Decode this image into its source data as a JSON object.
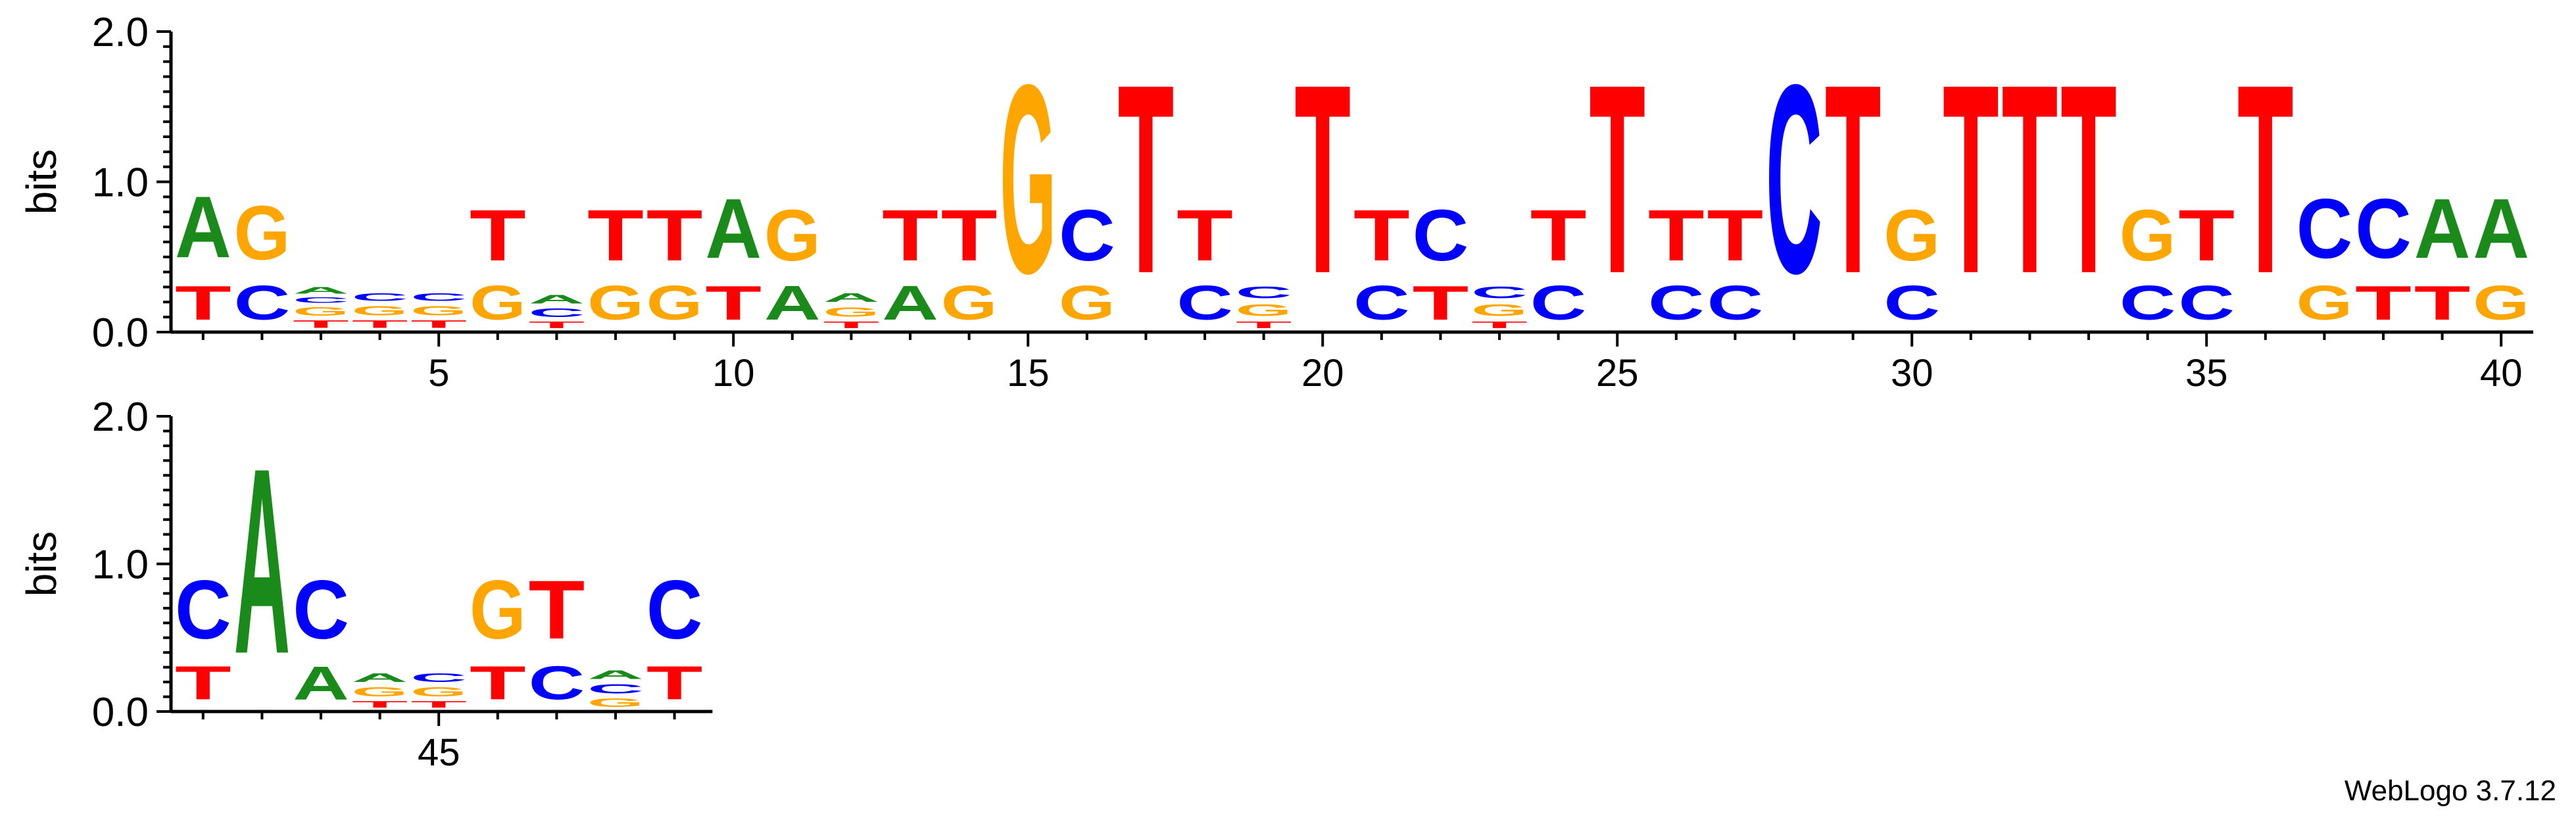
{
  "software_credit": "WebLogo 3.7.12",
  "colors": {
    "A": "#1a8a1a",
    "C": "#0000ff",
    "G": "#ffa500",
    "T": "#ff0000"
  },
  "chart_data": {
    "type": "sequence-logo",
    "ylabel": "bits",
    "ylim": [
      0,
      2
    ],
    "y_ticks": [
      "0.0",
      "1.0",
      "2.0"
    ],
    "x_tick_labels": [
      "5",
      "10",
      "15",
      "20",
      "25",
      "30",
      "35",
      "40",
      "45"
    ],
    "positions_per_row": 40,
    "positions": [
      {
        "pos": 1,
        "stack": [
          [
            "T",
            0.36
          ],
          [
            "A",
            0.65
          ]
        ]
      },
      {
        "pos": 2,
        "stack": [
          [
            "C",
            0.36
          ],
          [
            "G",
            0.57
          ]
        ]
      },
      {
        "pos": 3,
        "stack": [
          [
            "T",
            0.08
          ],
          [
            "G",
            0.09
          ],
          [
            "C",
            0.06
          ],
          [
            "A",
            0.07
          ]
        ]
      },
      {
        "pos": 4,
        "stack": [
          [
            "T",
            0.08
          ],
          [
            "G",
            0.1
          ],
          [
            "C",
            0.08
          ]
        ]
      },
      {
        "pos": 5,
        "stack": [
          [
            "T",
            0.08
          ],
          [
            "G",
            0.1
          ],
          [
            "C",
            0.08
          ]
        ]
      },
      {
        "pos": 6,
        "stack": [
          [
            "G",
            0.36
          ],
          [
            "T",
            0.54
          ]
        ]
      },
      {
        "pos": 7,
        "stack": [
          [
            "T",
            0.07
          ],
          [
            "C",
            0.09
          ],
          [
            "A",
            0.09
          ]
        ]
      },
      {
        "pos": 8,
        "stack": [
          [
            "G",
            0.36
          ],
          [
            "T",
            0.54
          ]
        ]
      },
      {
        "pos": 9,
        "stack": [
          [
            "G",
            0.36
          ],
          [
            "T",
            0.54
          ]
        ]
      },
      {
        "pos": 10,
        "stack": [
          [
            "T",
            0.36
          ],
          [
            "A",
            0.63
          ]
        ]
      },
      {
        "pos": 11,
        "stack": [
          [
            "A",
            0.36
          ],
          [
            "G",
            0.54
          ]
        ]
      },
      {
        "pos": 12,
        "stack": [
          [
            "T",
            0.07
          ],
          [
            "G",
            0.1
          ],
          [
            "A",
            0.09
          ]
        ]
      },
      {
        "pos": 13,
        "stack": [
          [
            "A",
            0.36
          ],
          [
            "T",
            0.54
          ]
        ]
      },
      {
        "pos": 14,
        "stack": [
          [
            "G",
            0.36
          ],
          [
            "T",
            0.54
          ]
        ]
      },
      {
        "pos": 15,
        "stack": [
          [
            "G",
            2.0
          ]
        ]
      },
      {
        "pos": 16,
        "stack": [
          [
            "G",
            0.36
          ],
          [
            "C",
            0.54
          ]
        ]
      },
      {
        "pos": 17,
        "stack": [
          [
            "T",
            2.0
          ]
        ]
      },
      {
        "pos": 18,
        "stack": [
          [
            "C",
            0.36
          ],
          [
            "T",
            0.54
          ]
        ]
      },
      {
        "pos": 19,
        "stack": [
          [
            "T",
            0.07
          ],
          [
            "G",
            0.12
          ],
          [
            "C",
            0.12
          ]
        ]
      },
      {
        "pos": 20,
        "stack": [
          [
            "T",
            2.0
          ]
        ]
      },
      {
        "pos": 21,
        "stack": [
          [
            "C",
            0.36
          ],
          [
            "T",
            0.54
          ]
        ]
      },
      {
        "pos": 22,
        "stack": [
          [
            "T",
            0.36
          ],
          [
            "C",
            0.54
          ]
        ]
      },
      {
        "pos": 23,
        "stack": [
          [
            "T",
            0.07
          ],
          [
            "G",
            0.12
          ],
          [
            "C",
            0.12
          ]
        ]
      },
      {
        "pos": 24,
        "stack": [
          [
            "C",
            0.36
          ],
          [
            "T",
            0.54
          ]
        ]
      },
      {
        "pos": 25,
        "stack": [
          [
            "T",
            2.0
          ]
        ]
      },
      {
        "pos": 26,
        "stack": [
          [
            "C",
            0.36
          ],
          [
            "T",
            0.54
          ]
        ]
      },
      {
        "pos": 27,
        "stack": [
          [
            "C",
            0.36
          ],
          [
            "T",
            0.54
          ]
        ]
      },
      {
        "pos": 28,
        "stack": [
          [
            "C",
            2.0
          ]
        ]
      },
      {
        "pos": 29,
        "stack": [
          [
            "T",
            2.0
          ]
        ]
      },
      {
        "pos": 30,
        "stack": [
          [
            "C",
            0.36
          ],
          [
            "G",
            0.54
          ]
        ]
      },
      {
        "pos": 31,
        "stack": [
          [
            "T",
            2.0
          ]
        ]
      },
      {
        "pos": 32,
        "stack": [
          [
            "T",
            2.0
          ]
        ]
      },
      {
        "pos": 33,
        "stack": [
          [
            "T",
            2.0
          ]
        ]
      },
      {
        "pos": 34,
        "stack": [
          [
            "C",
            0.36
          ],
          [
            "G",
            0.54
          ]
        ]
      },
      {
        "pos": 35,
        "stack": [
          [
            "C",
            0.36
          ],
          [
            "T",
            0.54
          ]
        ]
      },
      {
        "pos": 36,
        "stack": [
          [
            "T",
            2.0
          ]
        ]
      },
      {
        "pos": 37,
        "stack": [
          [
            "G",
            0.36
          ],
          [
            "C",
            0.63
          ]
        ]
      },
      {
        "pos": 38,
        "stack": [
          [
            "T",
            0.36
          ],
          [
            "C",
            0.63
          ]
        ]
      },
      {
        "pos": 39,
        "stack": [
          [
            "T",
            0.36
          ],
          [
            "A",
            0.63
          ]
        ]
      },
      {
        "pos": 40,
        "stack": [
          [
            "G",
            0.36
          ],
          [
            "A",
            0.63
          ]
        ]
      },
      {
        "pos": 41,
        "stack": [
          [
            "T",
            0.36
          ],
          [
            "C",
            0.63
          ]
        ]
      },
      {
        "pos": 42,
        "stack": [
          [
            "A",
            2.0
          ]
        ]
      },
      {
        "pos": 43,
        "stack": [
          [
            "A",
            0.36
          ],
          [
            "C",
            0.63
          ]
        ]
      },
      {
        "pos": 44,
        "stack": [
          [
            "T",
            0.07
          ],
          [
            "G",
            0.1
          ],
          [
            "A",
            0.09
          ]
        ]
      },
      {
        "pos": 45,
        "stack": [
          [
            "T",
            0.07
          ],
          [
            "G",
            0.1
          ],
          [
            "C",
            0.09
          ]
        ]
      },
      {
        "pos": 46,
        "stack": [
          [
            "T",
            0.36
          ],
          [
            "G",
            0.63
          ]
        ]
      },
      {
        "pos": 47,
        "stack": [
          [
            "C",
            0.36
          ],
          [
            "T",
            0.63
          ]
        ]
      },
      {
        "pos": 48,
        "stack": [
          [
            "G",
            0.09
          ],
          [
            "C",
            0.1
          ],
          [
            "A",
            0.09
          ]
        ]
      },
      {
        "pos": 49,
        "stack": [
          [
            "T",
            0.36
          ],
          [
            "C",
            0.63
          ]
        ]
      }
    ]
  }
}
